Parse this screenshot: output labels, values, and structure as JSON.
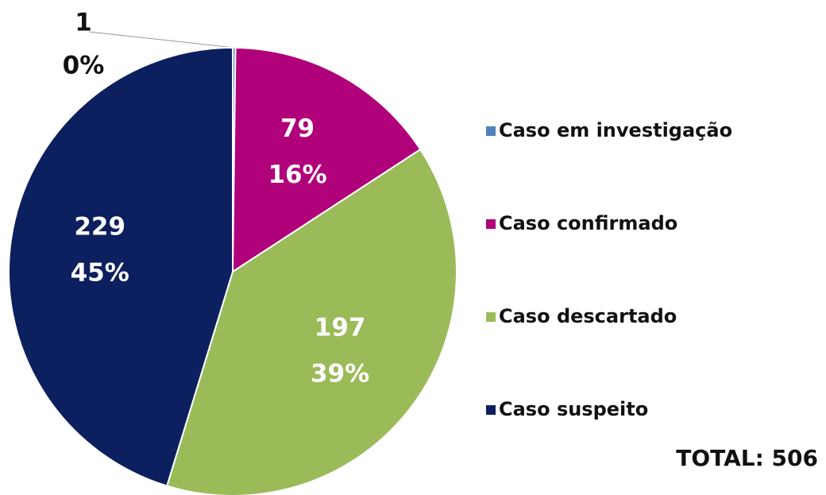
{
  "chart_data": {
    "type": "pie",
    "categories": [
      "Caso em investigação",
      "Caso confirmado",
      "Caso descartado",
      "Caso suspeito"
    ],
    "values": [
      1,
      79,
      197,
      229
    ],
    "value_labels": [
      "0%",
      "16%",
      "39%",
      "45%"
    ],
    "colors": [
      "#4f81bd",
      "#b0007a",
      "#9bbb59",
      "#0c1f5e"
    ],
    "legend": "right",
    "annotation": "TOTAL: 506"
  }
}
